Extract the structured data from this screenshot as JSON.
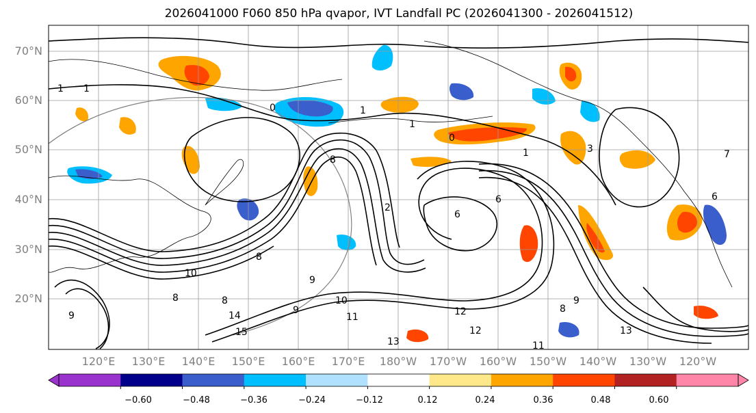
{
  "title": "2026041000 F060 850 hPa qvapor, IVT Landfall PC (2026041300 - 2026041512)",
  "map": {
    "lat_labels": [
      "70°N",
      "60°N",
      "50°N",
      "40°N",
      "30°N",
      "20°N"
    ],
    "lon_labels": [
      "120°E",
      "130°E",
      "140°E",
      "150°E",
      "160°E",
      "170°E",
      "180°W",
      "170°W",
      "160°W",
      "150°W",
      "140°W",
      "130°W",
      "120°W"
    ],
    "grid": true,
    "contour_labels": [
      "1",
      "1",
      "0",
      "1",
      "1",
      "0",
      "1",
      "3",
      "8",
      "2",
      "6",
      "6",
      "8",
      "10",
      "9",
      "8",
      "9",
      "10",
      "11",
      "12",
      "12",
      "13",
      "13",
      "14",
      "15",
      "11",
      "8",
      "9",
      "8",
      "9",
      "6",
      "7"
    ]
  },
  "colorbar": {
    "colors": [
      "#9a32cd",
      "#00008b",
      "#3a5fcd",
      "#00bfff",
      "#b0e2ff",
      "#ffffff",
      "#ffe88a",
      "#ffa500",
      "#ff4500",
      "#b22222",
      "#ff86a8"
    ],
    "ticks": [
      "−0.60",
      "−0.48",
      "−0.36",
      "−0.24",
      "−0.12",
      "0.12",
      "0.24",
      "0.36",
      "0.48",
      "0.60"
    ]
  }
}
